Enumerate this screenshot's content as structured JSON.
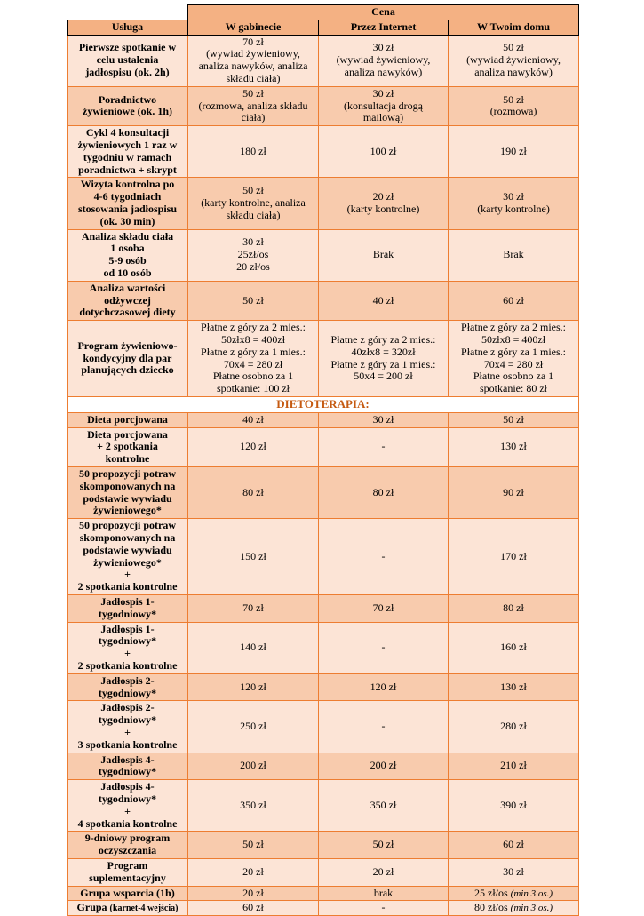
{
  "table": {
    "title_header": "Cena",
    "columns": [
      "Usługa",
      "W gabinecie",
      "Przez Internet",
      "W Twoim domu"
    ],
    "colors": {
      "header_fill": "#f4b183",
      "row_light": "#fce4d6",
      "row_medium": "#f8cbad",
      "body_border": "#ed7d31",
      "header_border": "#000000",
      "divider_text": "#c55a11"
    },
    "rows": [
      {
        "kind": "service",
        "shade": "light",
        "service": "Pierwsze spotkanie w\ncelu ustalenia\njadłospisu (ok. 2h)",
        "cells": [
          "70 zł\n(wywiad żywieniowy,\nanaliza nawyków, analiza\nskładu ciała)",
          "30 zł\n(wywiad żywieniowy,\nanaliza nawyków)",
          "50 zł\n(wywiad żywieniowy,\nanaliza nawyków)"
        ]
      },
      {
        "kind": "service",
        "shade": "medium",
        "service": "Poradnictwo\nżywieniowe (ok. 1h)",
        "cells": [
          "50 zł\n(rozmowa, analiza składu\nciała)",
          "30 zł\n(konsultacja drogą\nmailową)",
          "50 zł\n(rozmowa)"
        ]
      },
      {
        "kind": "service",
        "shade": "light",
        "service": "Cykl 4 konsultacji\nżywieniowych 1 raz w\ntygodniu w ramach\nporadnictwa + skrypt",
        "cells": [
          "180 zł",
          "100 zł",
          "190 zł"
        ]
      },
      {
        "kind": "service",
        "shade": "medium",
        "service": "Wizyta kontrolna po\n4-6 tygodniach\nstosowania jadłospisu\n(ok. 30 min)",
        "cells": [
          "50 zł\n(karty kontrolne, analiza\nskładu ciała)",
          "20 zł\n(karty kontrolne)",
          "30 zł\n(karty kontrolne)"
        ]
      },
      {
        "kind": "service",
        "shade": "light",
        "service": "Analiza składu ciała\n1 osoba\n5-9 osób\nod 10 osób",
        "cells": [
          "30 zł\n25zł/os\n20 zł/os",
          "Brak",
          "Brak"
        ]
      },
      {
        "kind": "service",
        "shade": "medium",
        "service": "Analiza wartości\nodżywczej\ndotychczasowej diety",
        "cells": [
          "50 zł",
          "40 zł",
          "60 zł"
        ]
      },
      {
        "kind": "service",
        "shade": "light",
        "service": "Program żywieniowo-\nkondycyjny dla par\nplanujących dziecko",
        "cells": [
          "Płatne z góry za 2 mies.:\n50złx8 = 400zł\nPłatne z góry za 1 mies.:\n70x4 = 280 zł\nPłatne osobno za 1\nspotkanie: 100 zł",
          "Płatne z góry za 2 mies.:\n40złx8 = 320zł\nPłatne z góry za 1 mies.:\n50x4 = 200 zł",
          "Płatne z góry za 2 mies.:\n50złx8 = 400zł\nPłatne z góry za 1 mies.:\n70x4 = 280 zł\nPłatne osobno za 1\nspotkanie: 80 zł"
        ]
      },
      {
        "kind": "divider",
        "label": "DIETOTERAPIA:"
      },
      {
        "kind": "service",
        "shade": "medium",
        "service": "Dieta porcjowana",
        "cells": [
          "40 zł",
          "30 zł",
          "50 zł"
        ]
      },
      {
        "kind": "service",
        "shade": "light",
        "service": "Dieta porcjowana\n+ 2 spotkania\nkontrolne",
        "cells": [
          "120 zł",
          "-",
          "130 zł"
        ]
      },
      {
        "kind": "service",
        "shade": "medium",
        "service": "50 propozycji potraw\nskomponowanych na\npodstawie wywiadu\nżywieniowego*",
        "cells": [
          "80 zł",
          "80 zł",
          "90 zł"
        ]
      },
      {
        "kind": "service",
        "shade": "light",
        "service": "50 propozycji potraw\nskomponowanych na\npodstawie wywiadu\nżywieniowego*\n+\n2 spotkania kontrolne",
        "cells": [
          "150 zł",
          "-",
          "170 zł"
        ]
      },
      {
        "kind": "service",
        "shade": "medium",
        "service": "Jadłospis 1-\ntygodniowy*",
        "cells": [
          "70 zł",
          "70 zł",
          "80 zł"
        ]
      },
      {
        "kind": "service",
        "shade": "light",
        "service": "Jadłospis 1-\ntygodniowy*\n+\n2 spotkania kontrolne",
        "cells": [
          "140 zł",
          "-",
          "160 zł"
        ]
      },
      {
        "kind": "service",
        "shade": "medium",
        "service": "Jadłospis 2-\ntygodniowy*",
        "cells": [
          "120 zł",
          "120 zł",
          "130 zł"
        ]
      },
      {
        "kind": "service",
        "shade": "light",
        "service": "Jadłospis 2-\ntygodniowy*\n+\n3 spotkania kontrolne",
        "cells": [
          "250 zł",
          "-",
          "280 zł"
        ]
      },
      {
        "kind": "service",
        "shade": "medium",
        "service": "Jadłospis 4-\ntygodniowy*",
        "cells": [
          "200 zł",
          "200 zł",
          "210 zł"
        ]
      },
      {
        "kind": "service",
        "shade": "light",
        "service": "Jadłospis 4-\ntygodniowy*\n+\n4 spotkania kontrolne",
        "cells": [
          "350 zł",
          "350 zł",
          "390 zł"
        ]
      },
      {
        "kind": "service",
        "shade": "medium",
        "service": "9-dniowy program\noczyszczania",
        "cells": [
          "50 zł",
          "50 zł",
          "60 zł"
        ]
      },
      {
        "kind": "service",
        "shade": "light",
        "service": "Program\nsuplementacyjny",
        "cells": [
          "20 zł",
          "20 zł",
          "30 zł"
        ]
      },
      {
        "kind": "service",
        "shade": "medium",
        "service": "Grupa wsparcia (1h)",
        "cells": [
          "20 zł",
          "brak",
          {
            "text": "25 zł/os ",
            "note": "(min 3 os.)"
          }
        ]
      },
      {
        "kind": "service",
        "shade": "light",
        "service": {
          "text": "Grupa ",
          "small": "(karnet-4 wejścia)"
        },
        "cells": [
          "60 zł",
          "-",
          {
            "text": "80 zł/os ",
            "note": "(min 3 os.)"
          }
        ]
      }
    ]
  }
}
